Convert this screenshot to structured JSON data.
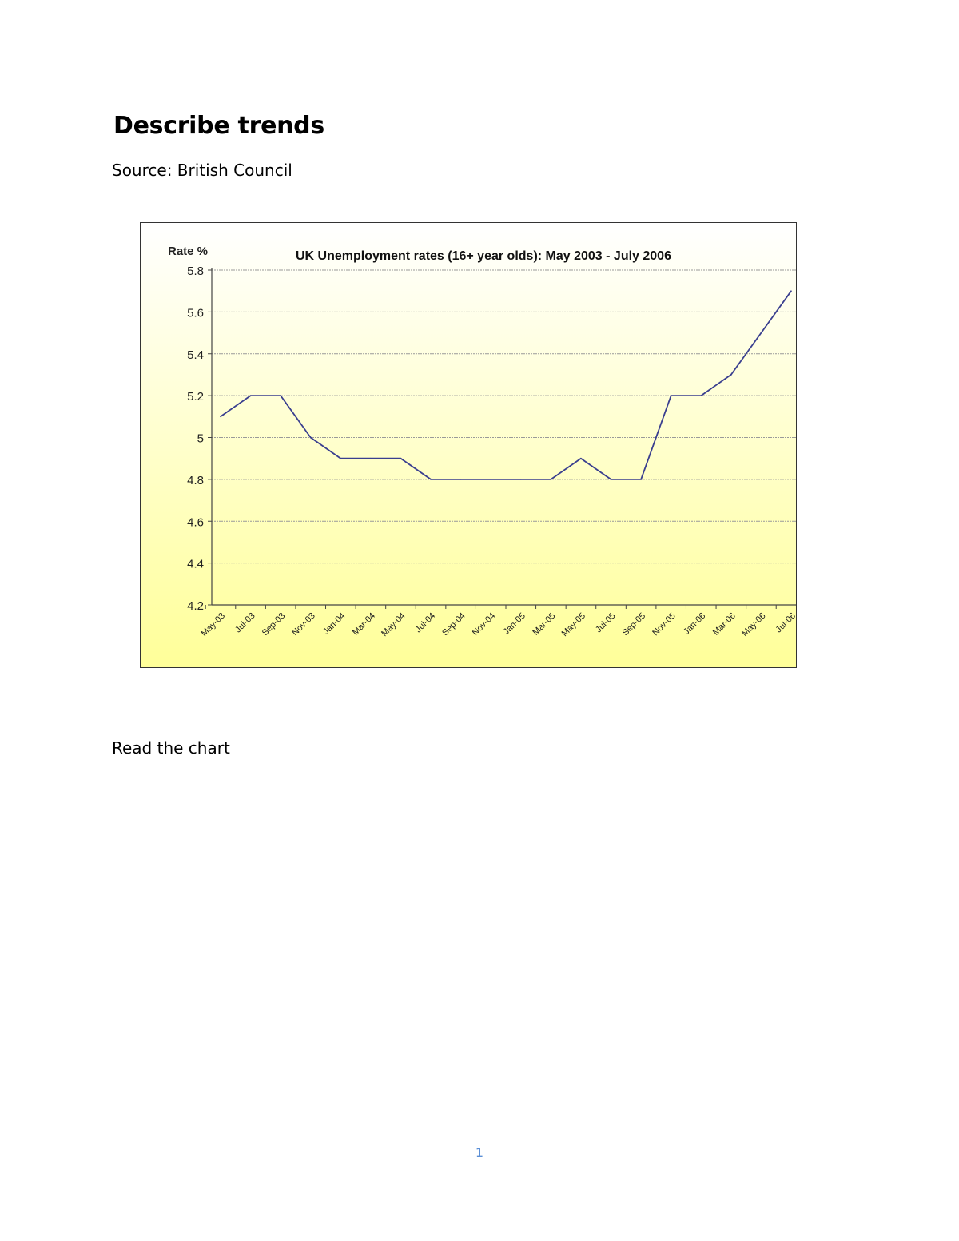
{
  "document": {
    "heading": "Describe trends",
    "source": "Source: British Council",
    "instruction": "Read the chart",
    "page_number": "1"
  },
  "colors": {
    "line": "#3a3f8f",
    "background_top": "#ffffff",
    "background_bottom": "#ffff99",
    "gridline": "#999999",
    "page_number": "#5b8fd6"
  },
  "chart_data": {
    "type": "line",
    "title": "UK Unemployment rates (16+ year olds): May 2003 - July 2006",
    "ylabel": "Rate %",
    "xlabel": "",
    "ylim": [
      4.2,
      5.8
    ],
    "yticks": [
      "5.8",
      "5.6",
      "5.4",
      "5.2",
      "5",
      "4.8",
      "4.6",
      "4.4",
      "4.2"
    ],
    "categories": [
      "May-03",
      "Jul-03",
      "Sep-03",
      "Nov-03",
      "Jan-04",
      "Mar-04",
      "May-04",
      "Jul-04",
      "Sep-04",
      "Nov-04",
      "Jan-05",
      "Mar-05",
      "May-05",
      "Jul-05",
      "Sep-05",
      "Nov-05",
      "Jan-06",
      "Mar-06",
      "May-06",
      "Jul-06"
    ],
    "series": [
      {
        "values": [
          5.1,
          5.2,
          5.2,
          5.0,
          4.9,
          4.9,
          4.9,
          4.8,
          4.8,
          4.8,
          4.8,
          4.8,
          4.9,
          4.8,
          4.8,
          5.2,
          5.2,
          5.3,
          5.5,
          5.7
        ]
      }
    ],
    "grid": true,
    "legend": "none"
  }
}
